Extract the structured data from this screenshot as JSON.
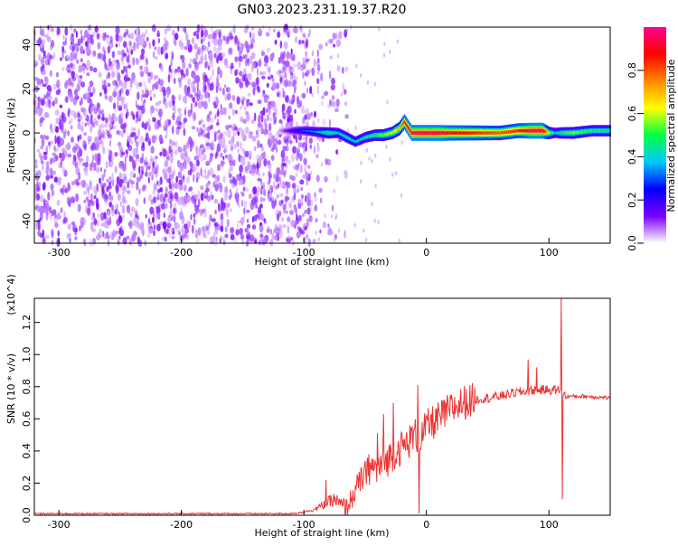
{
  "title": "GN03.2023.231.19.37.R20",
  "chart_data": [
    {
      "type": "heatmap",
      "xlabel": "Height of straight line (km)",
      "ylabel": "Frequency (Hz)",
      "xlim": [
        -320,
        150
      ],
      "ylim": [
        -50,
        48
      ],
      "xticks": [
        -300,
        -200,
        -100,
        0,
        100
      ],
      "yticks": [
        -40,
        -20,
        0,
        20,
        40
      ],
      "colorbar": {
        "label": "Normalized spectral amplitude",
        "range": [
          0,
          1
        ],
        "ticks": [
          "0.0",
          "0.2",
          "0.4",
          "0.6",
          "0.8"
        ],
        "colors": [
          "#ffffff",
          "#7a00ff",
          "#0000ff",
          "#00c8ff",
          "#00ff44",
          "#ffff00",
          "#ff8800",
          "#ff0000",
          "#ff0090"
        ]
      },
      "noise_region_x": [
        -320,
        -95
      ],
      "ridge": {
        "x": [
          -120,
          -110,
          -100,
          -90,
          -80,
          -72,
          -65,
          -58,
          -50,
          -42,
          -35,
          -28,
          -22,
          -18,
          -12,
          -5,
          0,
          10,
          20,
          40,
          60,
          75,
          85,
          95,
          100,
          105,
          110,
          120,
          135,
          150
        ],
        "frequency_hz": [
          1,
          1,
          1,
          0.5,
          0,
          0,
          -2,
          -4,
          -2,
          -1,
          -1,
          0,
          2,
          5,
          0,
          0,
          0,
          0,
          0,
          0,
          0,
          1,
          1,
          1,
          0,
          0,
          0,
          0,
          1,
          1
        ],
        "amplitude": [
          0.05,
          0.2,
          0.3,
          0.35,
          0.5,
          0.4,
          0.45,
          0.4,
          0.45,
          0.5,
          0.55,
          0.6,
          0.7,
          0.85,
          0.95,
          0.95,
          0.95,
          0.95,
          0.9,
          0.85,
          0.8,
          0.85,
          0.95,
          0.95,
          0.6,
          0.4,
          0.5,
          0.55,
          0.5,
          0.5
        ]
      }
    },
    {
      "type": "line",
      "xlabel": "Height of straight line (km)",
      "ylabel": "SNR (10 * v/v)",
      "multiplier": "(x10^4)",
      "xlim": [
        -320,
        150
      ],
      "ylim": [
        0,
        1.35
      ],
      "xticks": [
        -300,
        -200,
        -100,
        0,
        100
      ],
      "yticks": [
        "0.0",
        "0.2",
        "0.4",
        "0.6",
        "0.8",
        "1.0",
        "1.2"
      ],
      "series": [
        {
          "color": "#ee3333",
          "x": [
            -320,
            -250,
            -200,
            -150,
            -110,
            -100,
            -90,
            -80,
            -75,
            -70,
            -65,
            -60,
            -55,
            -50,
            -45,
            -40,
            -35,
            -30,
            -25,
            -20,
            -15,
            -10,
            -5,
            0,
            10,
            20,
            30,
            40,
            50,
            60,
            70,
            80,
            90,
            100,
            105,
            108,
            110,
            112,
            115,
            120,
            130,
            140,
            150
          ],
          "y": [
            0.01,
            0.01,
            0.01,
            0.01,
            0.01,
            0.02,
            0.04,
            0.08,
            0.1,
            0.06,
            0.05,
            0.12,
            0.2,
            0.25,
            0.3,
            0.28,
            0.32,
            0.36,
            0.4,
            0.42,
            0.45,
            0.5,
            0.48,
            0.55,
            0.6,
            0.66,
            0.7,
            0.72,
            0.73,
            0.74,
            0.76,
            0.77,
            0.78,
            0.78,
            0.78,
            0.78,
            0.76,
            0.75,
            0.74,
            0.74,
            0.74,
            0.735,
            0.73
          ],
          "spikes": [
            {
              "x": -82,
              "y": 0.22
            },
            {
              "x": -47,
              "y": 0.38
            },
            {
              "x": -40,
              "y": 0.51
            },
            {
              "x": -35,
              "y": 0.63
            },
            {
              "x": -27,
              "y": 0.7
            },
            {
              "x": -7,
              "y": 0.81
            },
            {
              "x": -6,
              "y": 0.01
            },
            {
              "x": 83,
              "y": 0.97
            },
            {
              "x": 90,
              "y": 0.92
            },
            {
              "x": 110,
              "y": 1.35
            },
            {
              "x": 111,
              "y": 0.1
            }
          ]
        }
      ]
    }
  ]
}
